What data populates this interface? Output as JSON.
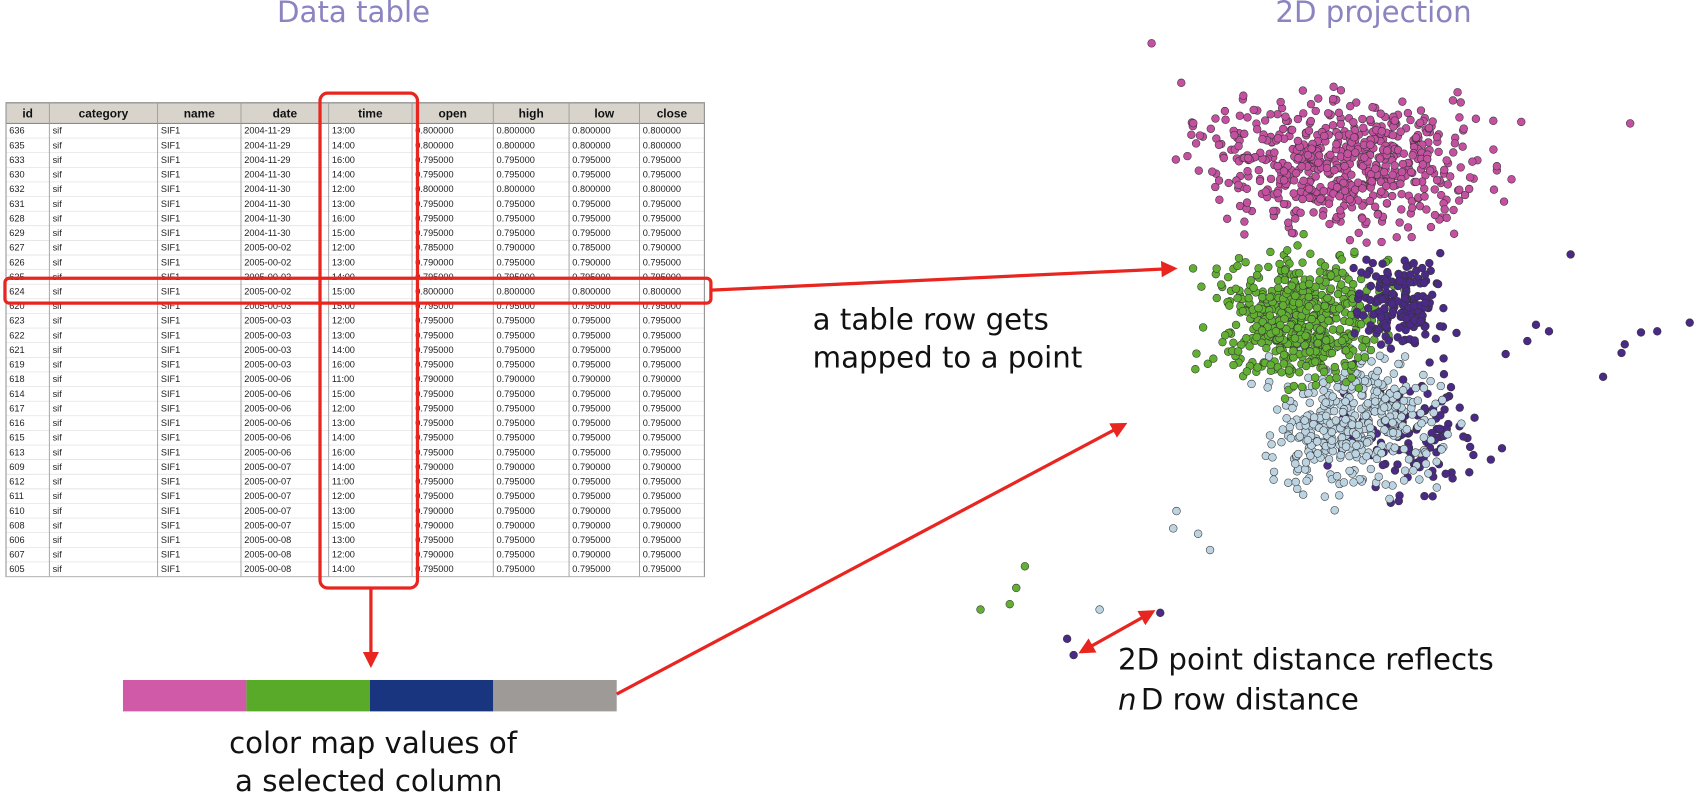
{
  "titles": {
    "table": "Data table",
    "projection": "2D projection"
  },
  "table": {
    "headers": [
      "id",
      "category",
      "name",
      "date",
      "time",
      "open",
      "high",
      "low",
      "close"
    ],
    "rows": [
      [
        "636",
        "sif",
        "SIF1",
        "2004-11-29",
        "13:00",
        "0.800000",
        "0.800000",
        "0.800000",
        "0.800000"
      ],
      [
        "635",
        "sif",
        "SIF1",
        "2004-11-29",
        "14:00",
        "0.800000",
        "0.800000",
        "0.800000",
        "0.800000"
      ],
      [
        "633",
        "sif",
        "SIF1",
        "2004-11-29",
        "16:00",
        "0.795000",
        "0.795000",
        "0.795000",
        "0.795000"
      ],
      [
        "630",
        "sif",
        "SIF1",
        "2004-11-30",
        "14:00",
        "0.795000",
        "0.795000",
        "0.795000",
        "0.795000"
      ],
      [
        "632",
        "sif",
        "SIF1",
        "2004-11-30",
        "12:00",
        "0.800000",
        "0.800000",
        "0.800000",
        "0.800000"
      ],
      [
        "631",
        "sif",
        "SIF1",
        "2004-11-30",
        "13:00",
        "0.795000",
        "0.795000",
        "0.795000",
        "0.795000"
      ],
      [
        "628",
        "sif",
        "SIF1",
        "2004-11-30",
        "16:00",
        "0.795000",
        "0.795000",
        "0.795000",
        "0.795000"
      ],
      [
        "629",
        "sif",
        "SIF1",
        "2004-11-30",
        "15:00",
        "0.795000",
        "0.795000",
        "0.795000",
        "0.795000"
      ],
      [
        "627",
        "sif",
        "SIF1",
        "2005-00-02",
        "12:00",
        "0.785000",
        "0.790000",
        "0.785000",
        "0.790000"
      ],
      [
        "626",
        "sif",
        "SIF1",
        "2005-00-02",
        "13:00",
        "0.790000",
        "0.795000",
        "0.790000",
        "0.795000"
      ],
      [
        "625",
        "sif",
        "SIF1",
        "2005-00-02",
        "14:00",
        "0.795000",
        "0.795000",
        "0.795000",
        "0.795000"
      ],
      [
        "624",
        "sif",
        "SIF1",
        "2005-00-02",
        "15:00",
        "0.800000",
        "0.800000",
        "0.800000",
        "0.800000"
      ],
      [
        "620",
        "sif",
        "SIF1",
        "2005-00-03",
        "15:00",
        "0.795000",
        "0.795000",
        "0.795000",
        "0.795000"
      ],
      [
        "623",
        "sif",
        "SIF1",
        "2005-00-03",
        "12:00",
        "0.795000",
        "0.795000",
        "0.795000",
        "0.795000"
      ],
      [
        "622",
        "sif",
        "SIF1",
        "2005-00-03",
        "13:00",
        "0.795000",
        "0.795000",
        "0.795000",
        "0.795000"
      ],
      [
        "621",
        "sif",
        "SIF1",
        "2005-00-03",
        "14:00",
        "0.795000",
        "0.795000",
        "0.795000",
        "0.795000"
      ],
      [
        "619",
        "sif",
        "SIF1",
        "2005-00-03",
        "16:00",
        "0.795000",
        "0.795000",
        "0.795000",
        "0.795000"
      ],
      [
        "618",
        "sif",
        "SIF1",
        "2005-00-06",
        "11:00",
        "0.790000",
        "0.790000",
        "0.790000",
        "0.790000"
      ],
      [
        "614",
        "sif",
        "SIF1",
        "2005-00-06",
        "15:00",
        "0.795000",
        "0.795000",
        "0.795000",
        "0.795000"
      ],
      [
        "617",
        "sif",
        "SIF1",
        "2005-00-06",
        "12:00",
        "0.795000",
        "0.795000",
        "0.795000",
        "0.795000"
      ],
      [
        "616",
        "sif",
        "SIF1",
        "2005-00-06",
        "13:00",
        "0.795000",
        "0.795000",
        "0.795000",
        "0.795000"
      ],
      [
        "615",
        "sif",
        "SIF1",
        "2005-00-06",
        "14:00",
        "0.795000",
        "0.795000",
        "0.795000",
        "0.795000"
      ],
      [
        "613",
        "sif",
        "SIF1",
        "2005-00-06",
        "16:00",
        "0.795000",
        "0.795000",
        "0.795000",
        "0.795000"
      ],
      [
        "609",
        "sif",
        "SIF1",
        "2005-00-07",
        "14:00",
        "0.790000",
        "0.790000",
        "0.790000",
        "0.790000"
      ],
      [
        "612",
        "sif",
        "SIF1",
        "2005-00-07",
        "11:00",
        "0.795000",
        "0.795000",
        "0.795000",
        "0.795000"
      ],
      [
        "611",
        "sif",
        "SIF1",
        "2005-00-07",
        "12:00",
        "0.795000",
        "0.795000",
        "0.795000",
        "0.795000"
      ],
      [
        "610",
        "sif",
        "SIF1",
        "2005-00-07",
        "13:00",
        "0.790000",
        "0.795000",
        "0.790000",
        "0.795000"
      ],
      [
        "608",
        "sif",
        "SIF1",
        "2005-00-07",
        "15:00",
        "0.790000",
        "0.790000",
        "0.790000",
        "0.790000"
      ],
      [
        "606",
        "sif",
        "SIF1",
        "2005-00-08",
        "13:00",
        "0.795000",
        "0.795000",
        "0.795000",
        "0.795000"
      ],
      [
        "607",
        "sif",
        "SIF1",
        "2005-00-08",
        "12:00",
        "0.790000",
        "0.795000",
        "0.790000",
        "0.795000"
      ],
      [
        "605",
        "sif",
        "SIF1",
        "2005-00-08",
        "14:00",
        "0.795000",
        "0.795000",
        "0.795000",
        "0.795000"
      ]
    ]
  },
  "annotations": {
    "row_to_point": [
      "a table row gets",
      "mapped to a point"
    ],
    "color_map": [
      "color map values of",
      "a selected column"
    ],
    "distance": {
      "line1": "2D point distance reflects",
      "italic": "n",
      "line2": "D row distance"
    }
  }
}
